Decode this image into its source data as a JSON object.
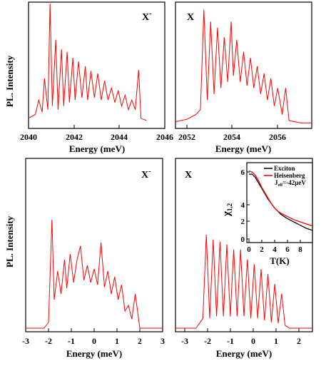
{
  "colors": {
    "series": "#ff0000",
    "black": "#000000"
  },
  "chart_data": [
    {
      "id": "top-left",
      "type": "line",
      "xlabel": "Energy (meV)",
      "ylabel": "PL. Intensity",
      "annotation": "X",
      "annotation_sup": "-",
      "xlim": [
        2040,
        2046
      ],
      "xticks": [
        "2040",
        "2042",
        "2044",
        "2046"
      ],
      "series": [
        {
          "x": [
            2040.0,
            2040.3,
            2040.45,
            2040.6,
            2040.7,
            2040.85,
            2040.95,
            2041.05,
            2041.2,
            2041.3,
            2041.45,
            2041.55,
            2041.7,
            2041.8,
            2041.95,
            2042.05,
            2042.2,
            2042.35,
            2042.5,
            2042.6,
            2042.75,
            2042.9,
            2043.05,
            2043.2,
            2043.35,
            2043.5,
            2043.65,
            2043.8,
            2043.95,
            2044.1,
            2044.25,
            2044.4,
            2044.55,
            2044.7,
            2044.85,
            2044.95,
            2045.05,
            2045.2
          ],
          "y": [
            0.05,
            0.08,
            0.2,
            0.1,
            0.38,
            0.12,
            1.0,
            0.15,
            0.7,
            0.12,
            0.62,
            0.15,
            0.6,
            0.18,
            0.55,
            0.2,
            0.52,
            0.22,
            0.48,
            0.2,
            0.44,
            0.22,
            0.42,
            0.2,
            0.36,
            0.2,
            0.3,
            0.18,
            0.28,
            0.15,
            0.24,
            0.12,
            0.2,
            0.12,
            0.45,
            0.05,
            0.04,
            0.03
          ]
        }
      ]
    },
    {
      "id": "top-right",
      "type": "line",
      "xlabel": "Energy (meV)",
      "ylabel": "",
      "annotation": "X",
      "annotation_sup": "",
      "xlim": [
        2051.5,
        2057.5
      ],
      "xticks": [
        "2052",
        "2054",
        "2056"
      ],
      "series": [
        {
          "x": [
            2051.5,
            2052.0,
            2052.4,
            2052.6,
            2052.75,
            2052.9,
            2053.05,
            2053.2,
            2053.35,
            2053.5,
            2053.65,
            2053.8,
            2053.95,
            2054.05,
            2054.2,
            2054.35,
            2054.5,
            2054.65,
            2054.8,
            2054.95,
            2055.1,
            2055.25,
            2055.4,
            2055.55,
            2055.7,
            2055.85,
            2056.0,
            2056.2,
            2056.35,
            2056.5,
            2057.0,
            2057.5
          ],
          "y": [
            0.02,
            0.04,
            0.08,
            0.12,
            0.95,
            0.2,
            0.85,
            0.25,
            0.8,
            0.3,
            0.72,
            0.35,
            0.85,
            0.4,
            0.7,
            0.35,
            0.6,
            0.32,
            0.55,
            0.3,
            0.48,
            0.25,
            0.42,
            0.2,
            0.38,
            0.15,
            0.3,
            0.08,
            0.3,
            0.03,
            0.01,
            0.01
          ]
        }
      ]
    },
    {
      "id": "bottom-left",
      "type": "line",
      "xlabel": "Energy (meV)",
      "ylabel": "PL. Intensity",
      "annotation": "X",
      "annotation_sup": "-",
      "xlim": [
        -3,
        3
      ],
      "xticks": [
        "-3",
        "-2",
        "-1",
        "0",
        "1",
        "2",
        "3"
      ],
      "series": [
        {
          "x": [
            -3.0,
            -2.2,
            -2.0,
            -1.85,
            -1.75,
            -1.6,
            -1.45,
            -1.3,
            -1.2,
            -1.05,
            -0.9,
            -0.75,
            -0.6,
            -0.45,
            -0.3,
            -0.15,
            0.0,
            0.15,
            0.3,
            0.45,
            0.6,
            0.75,
            0.9,
            1.05,
            1.2,
            1.35,
            1.5,
            1.65,
            1.8,
            2.0,
            3.0
          ],
          "y": [
            0.0,
            0.0,
            0.05,
            0.95,
            0.25,
            0.5,
            0.3,
            0.6,
            0.35,
            0.65,
            0.4,
            0.6,
            0.72,
            0.42,
            0.55,
            0.4,
            0.52,
            0.38,
            0.75,
            0.36,
            0.5,
            0.3,
            0.45,
            0.25,
            0.38,
            0.15,
            0.2,
            0.08,
            0.3,
            0.0,
            0.0
          ]
        }
      ]
    },
    {
      "id": "bottom-right",
      "type": "line",
      "xlabel": "Energy (meV)",
      "ylabel": "",
      "annotation": "X",
      "annotation_sup": "",
      "xlim": [
        -3.5,
        2.5
      ],
      "xticks": [
        "-3",
        "-2",
        "-1",
        "0",
        "1",
        "2"
      ],
      "series": [
        {
          "x": [
            -3.5,
            -2.6,
            -2.3,
            -2.15,
            -2.0,
            -1.85,
            -1.7,
            -1.55,
            -1.4,
            -1.25,
            -1.1,
            -0.95,
            -0.8,
            -0.65,
            -0.5,
            -0.35,
            -0.2,
            -0.05,
            0.1,
            0.25,
            0.4,
            0.55,
            0.7,
            0.85,
            1.0,
            1.15,
            1.3,
            1.5,
            2.5
          ],
          "y": [
            0.0,
            0.0,
            0.1,
            0.95,
            0.1,
            0.9,
            0.12,
            0.88,
            0.12,
            0.85,
            0.12,
            0.8,
            0.12,
            0.8,
            0.12,
            0.7,
            0.1,
            0.65,
            0.1,
            0.6,
            0.08,
            0.55,
            0.06,
            0.45,
            0.05,
            0.35,
            0.03,
            0.0,
            0.0
          ]
        }
      ]
    },
    {
      "id": "inset",
      "type": "line",
      "xlabel": "T(K)",
      "ylabel": "χ1,2",
      "ylabel_main": "χ",
      "ylabel_sub": "1,2",
      "xlim": [
        0,
        10
      ],
      "ylim": [
        0,
        7
      ],
      "xticks": [
        "0",
        "2",
        "4",
        "6",
        "8"
      ],
      "yticks": [
        "0",
        "2",
        "4",
        "6"
      ],
      "legend": {
        "position": "top-right",
        "exciton": "Exciton",
        "heis": "Heisenberg",
        "jeff_main": "J",
        "jeff_sub": "eff",
        "jeff_rest": "=-42μeV"
      },
      "series": [
        {
          "name": "Exciton",
          "color": "#000000",
          "x": [
            0,
            0.5,
            1,
            1.5,
            2,
            2.5,
            3,
            3.5,
            4,
            4.5,
            5,
            6,
            7,
            8,
            9,
            10
          ],
          "y": [
            6.0,
            6.0,
            5.7,
            5.2,
            4.7,
            4.2,
            3.7,
            3.3,
            2.9,
            2.6,
            2.3,
            1.9,
            1.6,
            1.3,
            1.0,
            0.8
          ]
        },
        {
          "name": "Heisenberg",
          "color": "#ff0000",
          "x": [
            0,
            0.5,
            1,
            1.5,
            2,
            2.5,
            3,
            3.5,
            4,
            4.5,
            5,
            6,
            7,
            8,
            9,
            10
          ],
          "y": [
            6.3,
            6.2,
            5.9,
            5.4,
            4.8,
            4.3,
            3.8,
            3.3,
            2.9,
            2.6,
            2.4,
            2.1,
            1.8,
            1.6,
            1.4,
            1.2
          ]
        }
      ]
    }
  ]
}
